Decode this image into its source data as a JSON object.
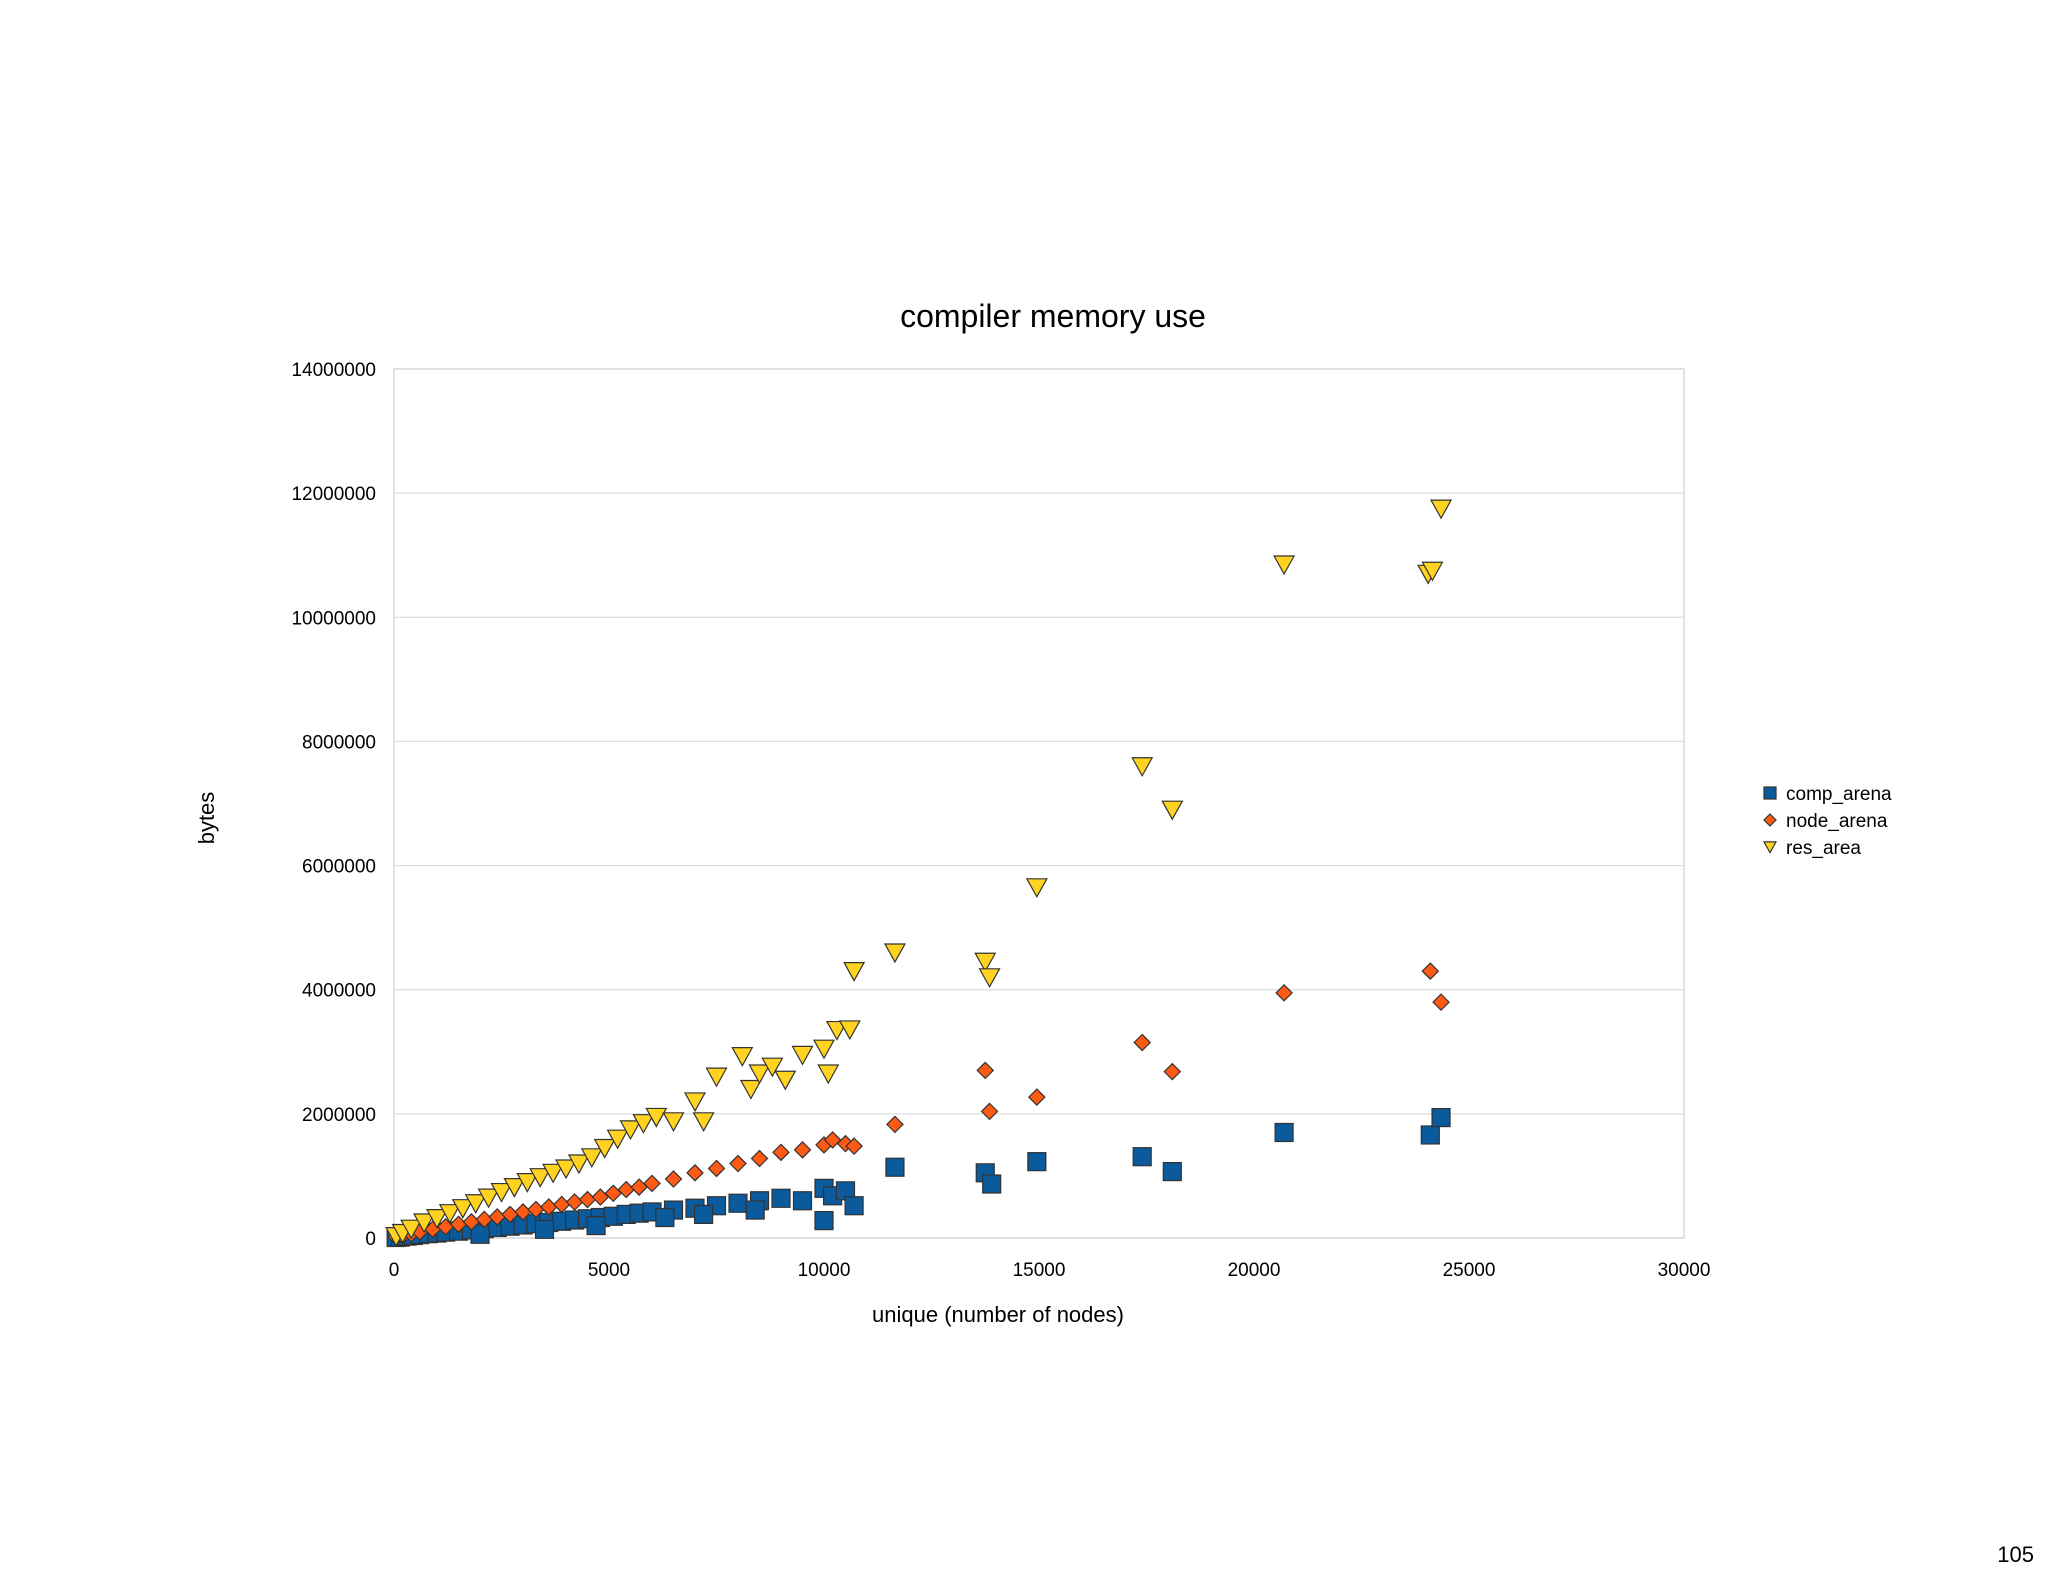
{
  "page": {
    "number": "105"
  },
  "chart_data": {
    "type": "scatter",
    "title": "compiler memory use",
    "xlabel": "unique (number of nodes)",
    "ylabel": "bytes",
    "xlim": [
      0,
      30000
    ],
    "ylim": [
      0,
      14000000
    ],
    "x_ticks": [
      0,
      5000,
      10000,
      15000,
      20000,
      25000,
      30000
    ],
    "y_ticks": [
      0,
      2000000,
      4000000,
      6000000,
      8000000,
      10000000,
      12000000,
      14000000
    ],
    "grid": "horizontal",
    "legend_position": "right",
    "series": [
      {
        "name": "comp_arena",
        "marker": "square",
        "color": "#0a5a9c",
        "points": [
          [
            50,
            8000
          ],
          [
            150,
            15000
          ],
          [
            300,
            30000
          ],
          [
            450,
            40000
          ],
          [
            600,
            55000
          ],
          [
            800,
            70000
          ],
          [
            1000,
            80000
          ],
          [
            1200,
            95000
          ],
          [
            1500,
            110000
          ],
          [
            1800,
            130000
          ],
          [
            2100,
            150000
          ],
          [
            2400,
            170000
          ],
          [
            2700,
            190000
          ],
          [
            3000,
            210000
          ],
          [
            3300,
            230000
          ],
          [
            3600,
            250000
          ],
          [
            3900,
            270000
          ],
          [
            4200,
            290000
          ],
          [
            4500,
            310000
          ],
          [
            4800,
            330000
          ],
          [
            5100,
            350000
          ],
          [
            5400,
            380000
          ],
          [
            5700,
            400000
          ],
          [
            6000,
            420000
          ],
          [
            6500,
            450000
          ],
          [
            7000,
            480000
          ],
          [
            7500,
            520000
          ],
          [
            8000,
            560000
          ],
          [
            8500,
            600000
          ],
          [
            9000,
            640000
          ],
          [
            9500,
            600000
          ],
          [
            10000,
            800000
          ],
          [
            10200,
            680000
          ],
          [
            10500,
            760000
          ],
          [
            10700,
            520000
          ],
          [
            10000,
            280000
          ],
          [
            11650,
            1140000
          ],
          [
            13750,
            1050000
          ],
          [
            13900,
            870000
          ],
          [
            14950,
            1230000
          ],
          [
            17400,
            1310000
          ],
          [
            18100,
            1070000
          ],
          [
            20700,
            1700000
          ],
          [
            24100,
            1660000
          ],
          [
            24350,
            1940000
          ],
          [
            2000,
            60000
          ],
          [
            3500,
            140000
          ],
          [
            4700,
            200000
          ],
          [
            6300,
            330000
          ],
          [
            7200,
            380000
          ],
          [
            8400,
            450000
          ]
        ]
      },
      {
        "name": "node_arena",
        "marker": "diamond",
        "color": "#ff5a14",
        "points": [
          [
            50,
            15000
          ],
          [
            200,
            40000
          ],
          [
            400,
            70000
          ],
          [
            600,
            100000
          ],
          [
            900,
            140000
          ],
          [
            1200,
            180000
          ],
          [
            1500,
            220000
          ],
          [
            1800,
            260000
          ],
          [
            2100,
            300000
          ],
          [
            2400,
            340000
          ],
          [
            2700,
            380000
          ],
          [
            3000,
            420000
          ],
          [
            3300,
            460000
          ],
          [
            3600,
            500000
          ],
          [
            3900,
            540000
          ],
          [
            4200,
            580000
          ],
          [
            4500,
            620000
          ],
          [
            4800,
            660000
          ],
          [
            5100,
            720000
          ],
          [
            5400,
            780000
          ],
          [
            5700,
            820000
          ],
          [
            6000,
            880000
          ],
          [
            6500,
            950000
          ],
          [
            7000,
            1050000
          ],
          [
            7500,
            1120000
          ],
          [
            8000,
            1200000
          ],
          [
            8500,
            1280000
          ],
          [
            9000,
            1380000
          ],
          [
            9500,
            1420000
          ],
          [
            10000,
            1500000
          ],
          [
            10200,
            1580000
          ],
          [
            10500,
            1520000
          ],
          [
            10700,
            1480000
          ],
          [
            11650,
            1830000
          ],
          [
            13750,
            2700000
          ],
          [
            13850,
            2040000
          ],
          [
            14950,
            2270000
          ],
          [
            17400,
            3150000
          ],
          [
            18100,
            2680000
          ],
          [
            20700,
            3950000
          ],
          [
            24100,
            4300000
          ],
          [
            24350,
            3800000
          ]
        ]
      },
      {
        "name": "res_area",
        "marker": "triangle-down",
        "color": "#ffd320",
        "points": [
          [
            50,
            30000
          ],
          [
            200,
            80000
          ],
          [
            400,
            150000
          ],
          [
            700,
            250000
          ],
          [
            1000,
            320000
          ],
          [
            1300,
            400000
          ],
          [
            1600,
            480000
          ],
          [
            1900,
            560000
          ],
          [
            2200,
            650000
          ],
          [
            2500,
            740000
          ],
          [
            2800,
            820000
          ],
          [
            3100,
            900000
          ],
          [
            3400,
            980000
          ],
          [
            3700,
            1050000
          ],
          [
            4000,
            1120000
          ],
          [
            4300,
            1200000
          ],
          [
            4600,
            1300000
          ],
          [
            4900,
            1450000
          ],
          [
            5200,
            1600000
          ],
          [
            5500,
            1750000
          ],
          [
            5800,
            1850000
          ],
          [
            6100,
            1950000
          ],
          [
            6500,
            1880000
          ],
          [
            7000,
            2200000
          ],
          [
            7200,
            1880000
          ],
          [
            7500,
            2600000
          ],
          [
            8100,
            2930000
          ],
          [
            8300,
            2400000
          ],
          [
            8500,
            2650000
          ],
          [
            8800,
            2760000
          ],
          [
            9100,
            2550000
          ],
          [
            9500,
            2950000
          ],
          [
            10000,
            3050000
          ],
          [
            10100,
            2650000
          ],
          [
            10300,
            3350000
          ],
          [
            10600,
            3360000
          ],
          [
            10700,
            4300000
          ],
          [
            11650,
            4600000
          ],
          [
            13750,
            4450000
          ],
          [
            13850,
            4200000
          ],
          [
            14950,
            5650000
          ],
          [
            17400,
            7600000
          ],
          [
            18100,
            6900000
          ],
          [
            20700,
            10850000
          ],
          [
            24050,
            10700000
          ],
          [
            24150,
            10750000
          ],
          [
            24350,
            11750000
          ]
        ]
      }
    ]
  }
}
